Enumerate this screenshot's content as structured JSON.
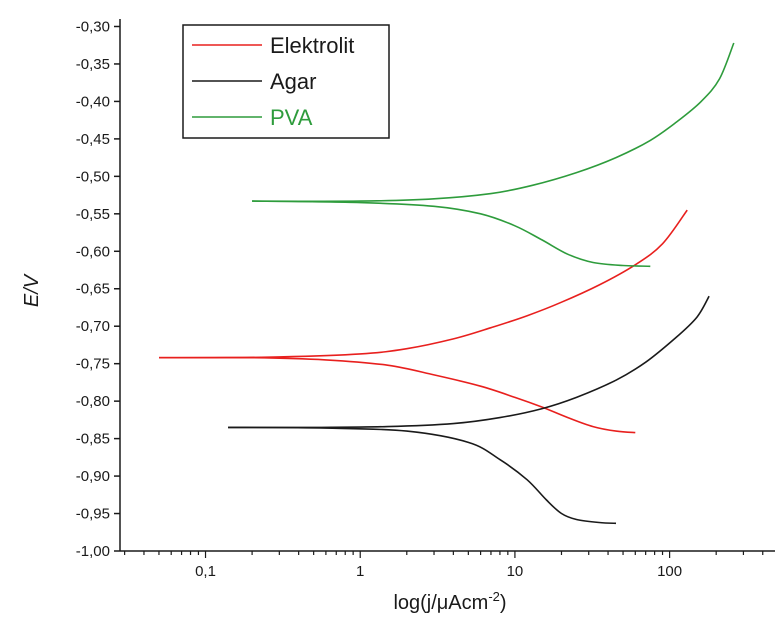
{
  "chart_data": {
    "type": "line",
    "title": "",
    "xlabel": "log(j/μAcm",
    "xlabel_sup": "-2",
    "xlabel_close": ")",
    "ylabel": "E/V",
    "x_scale": "log",
    "xlim": [
      0.028,
      480
    ],
    "ylim": [
      -1.0,
      -0.29
    ],
    "x_ticks": [
      {
        "value": 0.1,
        "label": "0,1"
      },
      {
        "value": 1,
        "label": "1"
      },
      {
        "value": 10,
        "label": "10"
      },
      {
        "value": 100,
        "label": "100"
      }
    ],
    "y_ticks": [
      {
        "value": -0.3,
        "label": "-0,30"
      },
      {
        "value": -0.35,
        "label": "-0,35"
      },
      {
        "value": -0.4,
        "label": "-0,40"
      },
      {
        "value": -0.45,
        "label": "-0,45"
      },
      {
        "value": -0.5,
        "label": "-0,50"
      },
      {
        "value": -0.55,
        "label": "-0,55"
      },
      {
        "value": -0.6,
        "label": "-0,60"
      },
      {
        "value": -0.65,
        "label": "-0,65"
      },
      {
        "value": -0.7,
        "label": "-0,70"
      },
      {
        "value": -0.75,
        "label": "-0,75"
      },
      {
        "value": -0.8,
        "label": "-0,80"
      },
      {
        "value": -0.85,
        "label": "-0,85"
      },
      {
        "value": -0.9,
        "label": "-0,90"
      },
      {
        "value": -0.95,
        "label": "-0,95"
      },
      {
        "value": -1.0,
        "label": "-1,00"
      }
    ],
    "grid": false,
    "legend_position": "top-left",
    "series": [
      {
        "name": "Elektrolit",
        "color": "#e8201e",
        "legend_text_color": "#1a1a1a",
        "branches": [
          [
            [
              0.05,
              -0.742
            ],
            [
              0.1,
              -0.742
            ],
            [
              0.3,
              -0.741
            ],
            [
              1,
              -0.737
            ],
            [
              2,
              -0.73
            ],
            [
              4,
              -0.717
            ],
            [
              7,
              -0.702
            ],
            [
              12,
              -0.686
            ],
            [
              20,
              -0.668
            ],
            [
              35,
              -0.645
            ],
            [
              60,
              -0.618
            ],
            [
              90,
              -0.59
            ],
            [
              130,
              -0.545
            ]
          ],
          [
            [
              0.05,
              -0.742
            ],
            [
              0.2,
              -0.742
            ],
            [
              0.6,
              -0.745
            ],
            [
              1.5,
              -0.752
            ],
            [
              3,
              -0.765
            ],
            [
              6,
              -0.78
            ],
            [
              10,
              -0.795
            ],
            [
              15,
              -0.808
            ],
            [
              22,
              -0.822
            ],
            [
              32,
              -0.834
            ],
            [
              45,
              -0.84
            ],
            [
              60,
              -0.842
            ]
          ]
        ]
      },
      {
        "name": "Agar",
        "color": "#1a1a1a",
        "legend_text_color": "#1a1a1a",
        "branches": [
          [
            [
              0.14,
              -0.835
            ],
            [
              0.5,
              -0.835
            ],
            [
              1.5,
              -0.834
            ],
            [
              4,
              -0.83
            ],
            [
              8,
              -0.822
            ],
            [
              15,
              -0.81
            ],
            [
              25,
              -0.795
            ],
            [
              45,
              -0.772
            ],
            [
              70,
              -0.748
            ],
            [
              110,
              -0.715
            ],
            [
              150,
              -0.688
            ],
            [
              180,
              -0.66
            ]
          ],
          [
            [
              0.14,
              -0.835
            ],
            [
              0.6,
              -0.836
            ],
            [
              2,
              -0.84
            ],
            [
              5,
              -0.855
            ],
            [
              8,
              -0.878
            ],
            [
              12,
              -0.905
            ],
            [
              16,
              -0.932
            ],
            [
              20,
              -0.95
            ],
            [
              25,
              -0.958
            ],
            [
              35,
              -0.962
            ],
            [
              45,
              -0.963
            ]
          ]
        ]
      },
      {
        "name": "PVA",
        "color": "#2e9c3c",
        "legend_text_color": "#2e9c3c",
        "branches": [
          [
            [
              0.2,
              -0.533
            ],
            [
              1,
              -0.533
            ],
            [
              3,
              -0.53
            ],
            [
              7,
              -0.523
            ],
            [
              13,
              -0.512
            ],
            [
              25,
              -0.495
            ],
            [
              45,
              -0.475
            ],
            [
              75,
              -0.452
            ],
            [
              110,
              -0.428
            ],
            [
              160,
              -0.4
            ],
            [
              210,
              -0.37
            ],
            [
              260,
              -0.322
            ]
          ],
          [
            [
              0.2,
              -0.533
            ],
            [
              1,
              -0.535
            ],
            [
              3,
              -0.54
            ],
            [
              6,
              -0.55
            ],
            [
              10,
              -0.566
            ],
            [
              15,
              -0.585
            ],
            [
              22,
              -0.604
            ],
            [
              32,
              -0.615
            ],
            [
              50,
              -0.619
            ],
            [
              75,
              -0.62
            ]
          ]
        ]
      }
    ]
  }
}
